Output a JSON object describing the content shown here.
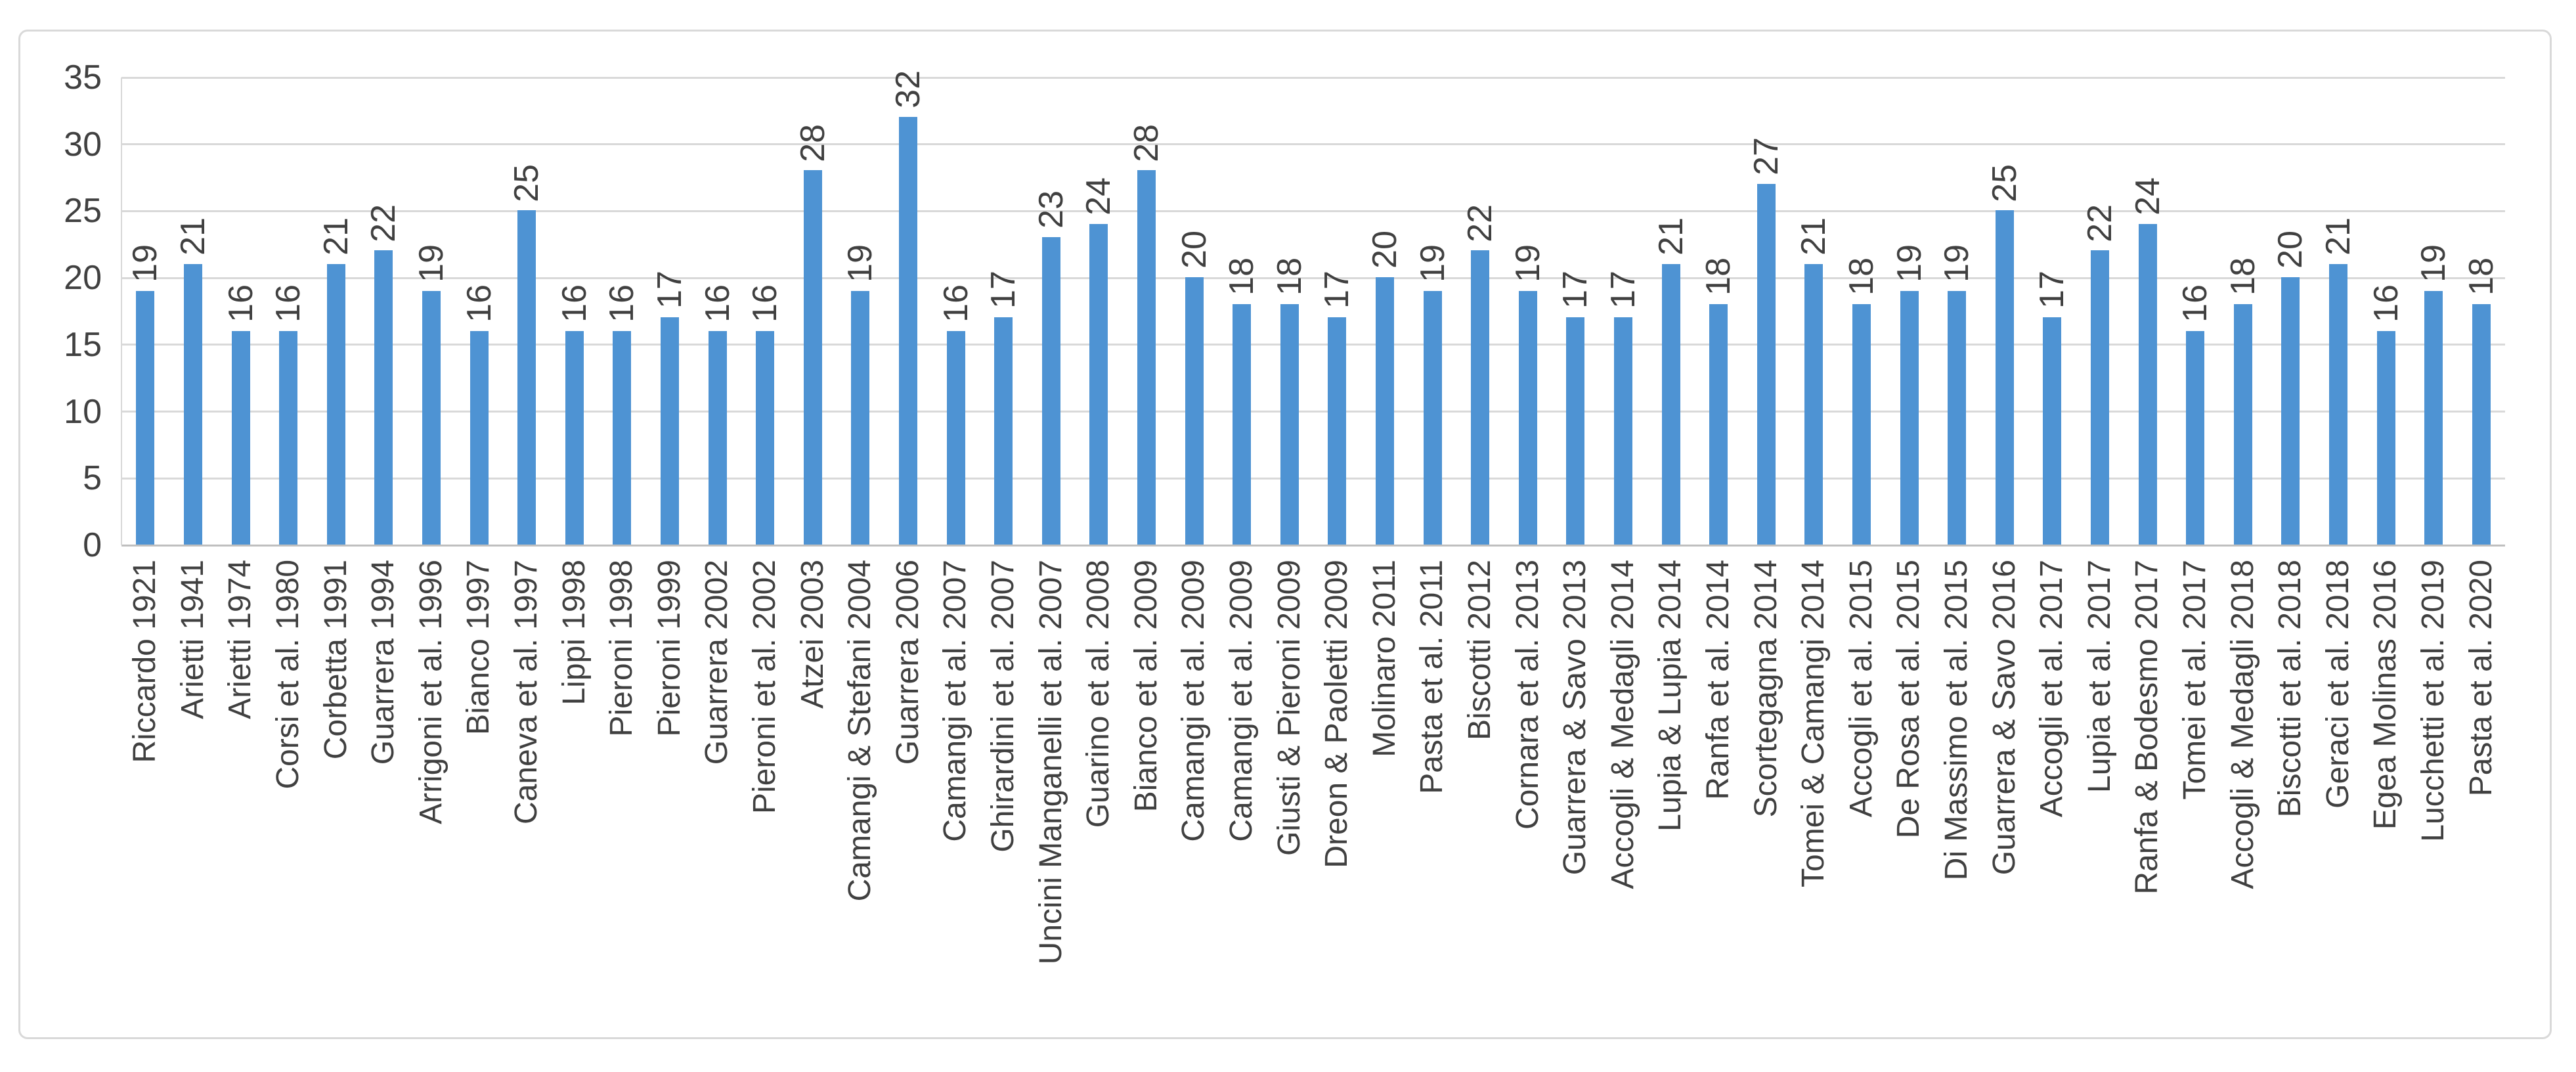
{
  "chart_data": {
    "type": "bar",
    "title": "",
    "xlabel": "",
    "ylabel": "",
    "categories": [
      "Riccardo 1921",
      "Arietti 1941",
      "Arietti 1974",
      "Corsi et al. 1980",
      "Corbetta 1991",
      "Guarrera 1994",
      "Arrigoni et al. 1996",
      "Bianco 1997",
      "Caneva et al. 1997",
      "Lippi 1998",
      "Pieroni 1998",
      "Pieroni 1999",
      "Guarrera 2002",
      "Pieroni et al. 2002",
      "Atzei 2003",
      "Camangi & Stefani 2004",
      "Guarrera 2006",
      "Camangi et al. 2007",
      "Ghirardini et al. 2007",
      "Uncini Manganelli et al. 2007",
      "Guarino et al. 2008",
      "Bianco et al. 2009",
      "Camangi et al. 2009",
      "Camangi et al. 2009",
      "Giusti & Pieroni 2009",
      "Dreon & Paoletti 2009",
      "Molinaro 2011",
      "Pasta et al. 2011",
      "Biscotti 2012",
      "Cornara et al. 2013",
      "Guarrera & Savo 2013",
      "Accogli & Medagli 2014",
      "Lupia & Lupia 2014",
      "Ranfa et al. 2014",
      "Scortegagna 2014",
      "Tomei & Camangi 2014",
      "Accogli et al. 2015",
      "De Rosa et al. 2015",
      "Di Massimo et al. 2015",
      "Guarrera & Savo 2016",
      "Accogli et al. 2017",
      "Lupia et al. 2017",
      "Ranfa & Bodesmo 2017",
      "Tomei et al. 2017",
      "Accogli & Medagli 2018",
      "Biscotti et al. 2018",
      "Geraci et al. 2018",
      "Egea Molinas 2016",
      "Lucchetti et al. 2019",
      "Pasta et al. 2020"
    ],
    "values": [
      19,
      21,
      16,
      16,
      21,
      22,
      19,
      16,
      25,
      16,
      16,
      17,
      16,
      16,
      28,
      19,
      32,
      16,
      17,
      23,
      24,
      28,
      20,
      18,
      18,
      17,
      20,
      19,
      22,
      19,
      17,
      17,
      21,
      18,
      27,
      21,
      18,
      19,
      19,
      25,
      17,
      22,
      24,
      16,
      18,
      20,
      21,
      16,
      19,
      18
    ],
    "yticks": [
      0,
      5,
      10,
      15,
      20,
      25,
      30,
      35
    ],
    "ylim": [
      0,
      35
    ],
    "grid": true,
    "legend": false,
    "data_labels": true,
    "label_rotation_degrees": 90
  },
  "colors": {
    "bar": "#4e93d3",
    "gridline": "#d9d9d9",
    "axis_line": "#bfbfbf",
    "text": "#404040",
    "frame_border": "#d9d9d9",
    "background": "#ffffff"
  }
}
